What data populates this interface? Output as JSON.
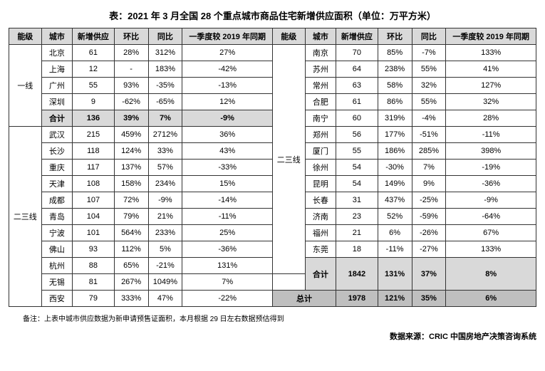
{
  "title": "表：2021 年 3 月全国 28 个重点城市商品住宅新增供应面积（单位：万平方米）",
  "headers": {
    "tier": "能级",
    "city": "城市",
    "supply": "新增供应",
    "mom": "环比",
    "yoy": "同比",
    "q1_vs_2019": "一季度较 2019 年同期"
  },
  "left": {
    "tier1_label": "一线",
    "tier1": [
      {
        "city": "北京",
        "supply": "61",
        "mom": "28%",
        "yoy": "312%",
        "q1": "27%"
      },
      {
        "city": "上海",
        "supply": "12",
        "mom": "-",
        "yoy": "183%",
        "q1": "-42%"
      },
      {
        "city": "广州",
        "supply": "55",
        "mom": "93%",
        "yoy": "-35%",
        "q1": "-13%"
      },
      {
        "city": "深圳",
        "supply": "9",
        "mom": "-62%",
        "yoy": "-65%",
        "q1": "12%"
      }
    ],
    "tier1_subtotal": {
      "city": "合计",
      "supply": "136",
      "mom": "39%",
      "yoy": "7%",
      "q1": "-9%"
    },
    "tier23_label": "二三线",
    "tier23": [
      {
        "city": "武汉",
        "supply": "215",
        "mom": "459%",
        "yoy": "2712%",
        "q1": "36%"
      },
      {
        "city": "长沙",
        "supply": "118",
        "mom": "124%",
        "yoy": "33%",
        "q1": "43%"
      },
      {
        "city": "重庆",
        "supply": "117",
        "mom": "137%",
        "yoy": "57%",
        "q1": "-33%"
      },
      {
        "city": "天津",
        "supply": "108",
        "mom": "158%",
        "yoy": "234%",
        "q1": "15%"
      },
      {
        "city": "成都",
        "supply": "107",
        "mom": "72%",
        "yoy": "-9%",
        "q1": "-14%"
      },
      {
        "city": "青岛",
        "supply": "104",
        "mom": "79%",
        "yoy": "21%",
        "q1": "-11%"
      },
      {
        "city": "宁波",
        "supply": "101",
        "mom": "564%",
        "yoy": "233%",
        "q1": "25%"
      },
      {
        "city": "佛山",
        "supply": "93",
        "mom": "112%",
        "yoy": "5%",
        "q1": "-36%"
      },
      {
        "city": "杭州",
        "supply": "88",
        "mom": "65%",
        "yoy": "-21%",
        "q1": "131%"
      },
      {
        "city": "无锡",
        "supply": "81",
        "mom": "267%",
        "yoy": "1049%",
        "q1": "7%"
      },
      {
        "city": "西安",
        "supply": "79",
        "mom": "333%",
        "yoy": "47%",
        "q1": "-22%"
      }
    ]
  },
  "right": {
    "tier23_label": "二三线",
    "tier23": [
      {
        "city": "南京",
        "supply": "70",
        "mom": "85%",
        "yoy": "-7%",
        "q1": "133%"
      },
      {
        "city": "苏州",
        "supply": "64",
        "mom": "238%",
        "yoy": "55%",
        "q1": "41%"
      },
      {
        "city": "常州",
        "supply": "63",
        "mom": "58%",
        "yoy": "32%",
        "q1": "127%"
      },
      {
        "city": "合肥",
        "supply": "61",
        "mom": "86%",
        "yoy": "55%",
        "q1": "32%"
      },
      {
        "city": "南宁",
        "supply": "60",
        "mom": "319%",
        "yoy": "-4%",
        "q1": "28%"
      },
      {
        "city": "郑州",
        "supply": "56",
        "mom": "177%",
        "yoy": "-51%",
        "q1": "-11%"
      },
      {
        "city": "厦门",
        "supply": "55",
        "mom": "186%",
        "yoy": "285%",
        "q1": "398%"
      },
      {
        "city": "徐州",
        "supply": "54",
        "mom": "-30%",
        "yoy": "7%",
        "q1": "-19%"
      },
      {
        "city": "昆明",
        "supply": "54",
        "mom": "149%",
        "yoy": "9%",
        "q1": "-36%"
      },
      {
        "city": "长春",
        "supply": "31",
        "mom": "437%",
        "yoy": "-25%",
        "q1": "-9%"
      },
      {
        "city": "济南",
        "supply": "23",
        "mom": "52%",
        "yoy": "-59%",
        "q1": "-64%"
      },
      {
        "city": "福州",
        "supply": "21",
        "mom": "6%",
        "yoy": "-26%",
        "q1": "67%"
      },
      {
        "city": "东莞",
        "supply": "18",
        "mom": "-11%",
        "yoy": "-27%",
        "q1": "133%"
      }
    ],
    "subtotal": {
      "city": "合计",
      "supply": "1842",
      "mom": "131%",
      "yoy": "37%",
      "q1": "8%"
    },
    "grand_label": "总计",
    "grand": {
      "supply": "1978",
      "mom": "121%",
      "yoy": "35%",
      "q1": "6%"
    }
  },
  "footnote": "备注：上表中城市供应数据为新申请预售证面积，本月根据 29 日左右数据预估得到",
  "source": "数据来源：CRIC 中国房地产决策咨询系统",
  "colors": {
    "header_bg": "#d9d9d9",
    "subtotal_bg": "#d9d9d9",
    "grand_bg": "#bfbfbf",
    "border": "#333333",
    "text": "#000000",
    "background": "#ffffff"
  }
}
